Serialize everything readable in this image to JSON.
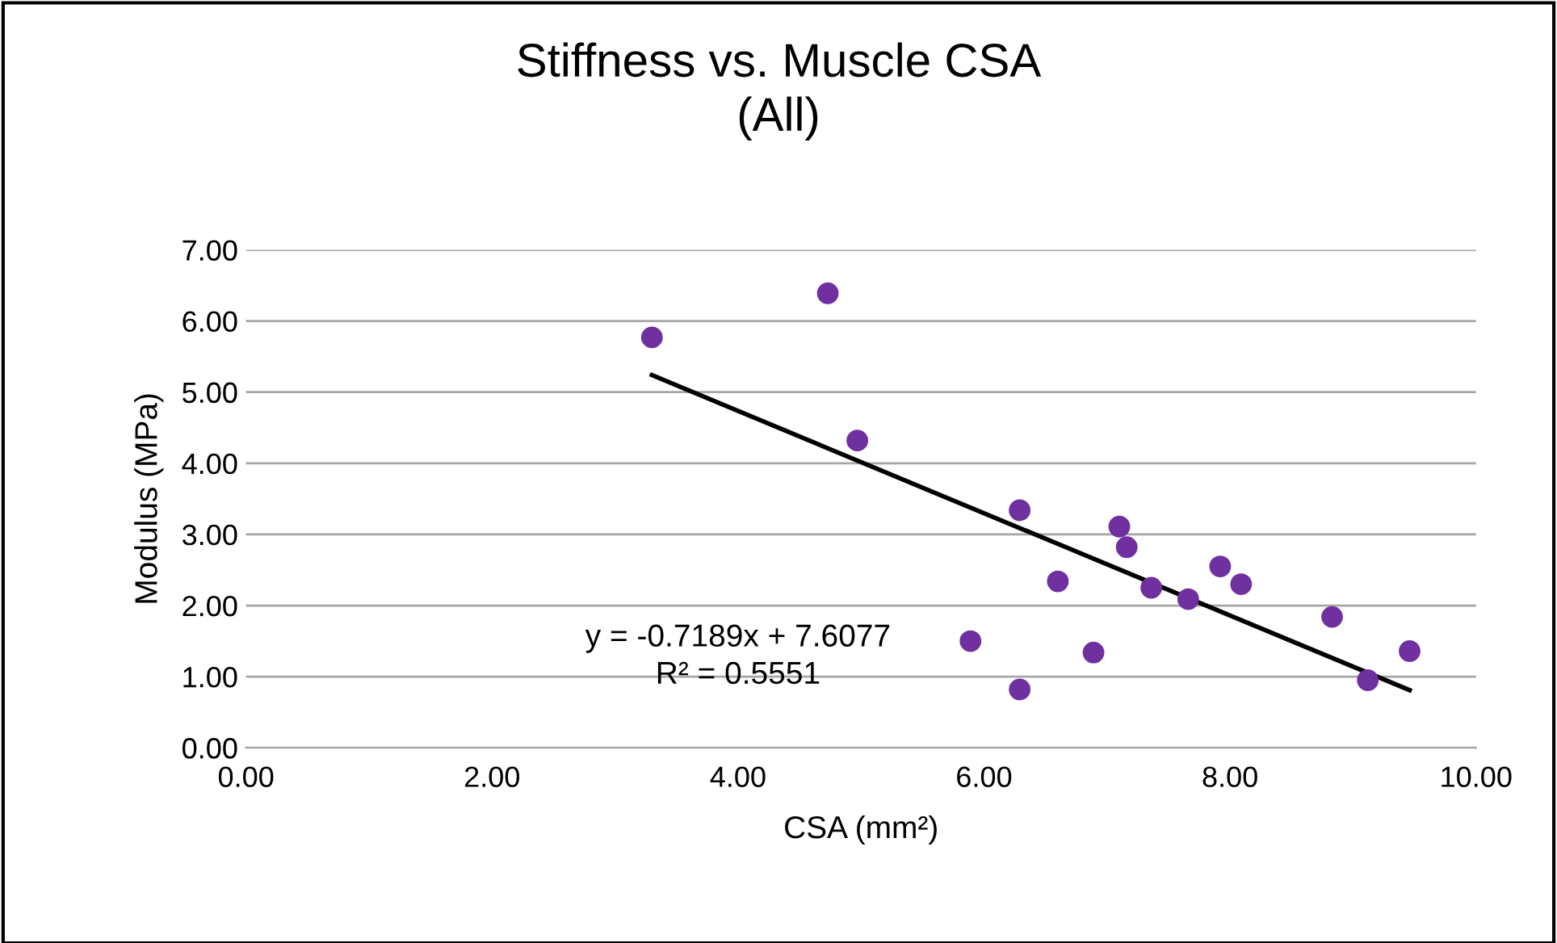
{
  "chart_data": {
    "type": "scatter",
    "title": "Stiffness vs. Muscle CSA\n(All)",
    "xlabel": "CSA (mm²)",
    "ylabel": "Modulus (MPa)",
    "series": [
      {
        "color": "#7030a0",
        "marker": "circle",
        "x": [
          3.3,
          4.73,
          4.97,
          5.89,
          6.29,
          6.29,
          6.6,
          6.89,
          7.1,
          7.16,
          7.36,
          7.66,
          7.92,
          8.09,
          8.83,
          9.12,
          9.46
        ],
        "values": [
          5.77,
          6.39,
          4.32,
          1.5,
          3.34,
          0.82,
          2.34,
          1.34,
          3.11,
          2.82,
          2.25,
          2.09,
          2.55,
          2.3,
          1.84,
          0.95,
          1.36
        ]
      },
      {
        "type": "line",
        "color": "#000000",
        "x": [
          3.3,
          9.46
        ],
        "values": [
          5.24,
          0.81
        ]
      }
    ],
    "annotations": [
      "y = -0.7189x + 7.6077",
      "R² = 0.5551"
    ],
    "xlim": [
      0,
      10
    ],
    "xticks": [
      {
        "value": 0,
        "label": "0.00"
      },
      {
        "value": 2,
        "label": "2.00"
      },
      {
        "value": 4,
        "label": "4.00"
      },
      {
        "value": 6,
        "label": "6.00"
      },
      {
        "value": 8,
        "label": "8.00"
      },
      {
        "value": 10,
        "label": "10.00"
      }
    ],
    "ylim": [
      0,
      7
    ],
    "yticks": [
      {
        "value": 0,
        "label": "0.00"
      },
      {
        "value": 1,
        "label": "1.00"
      },
      {
        "value": 2,
        "label": "2.00"
      },
      {
        "value": 3,
        "label": "3.00"
      },
      {
        "value": 4,
        "label": "4.00"
      },
      {
        "value": 5,
        "label": "5.00"
      },
      {
        "value": 6,
        "label": "6.00"
      },
      {
        "value": 7,
        "label": "7.00"
      }
    ],
    "grid": "y"
  }
}
